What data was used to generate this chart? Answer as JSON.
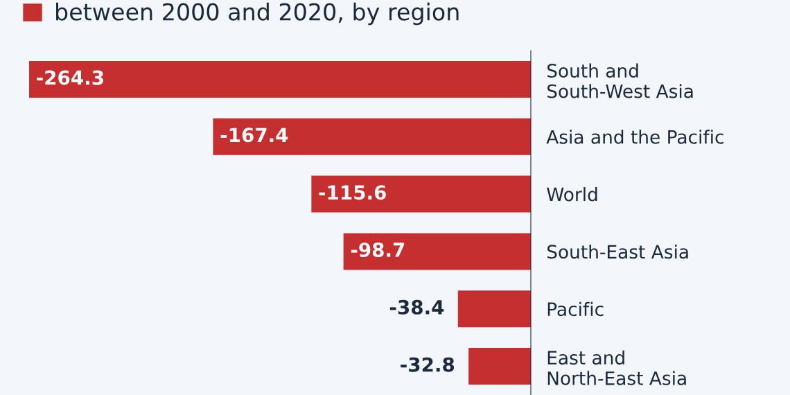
{
  "chart_data": {
    "type": "bar",
    "orientation": "horizontal",
    "title": "between 2000 and 2020, by region",
    "categories": [
      "South and\nSouth-West Asia",
      "Asia and the Pacific",
      "World",
      "South-East Asia",
      "Pacific",
      "East and\nNorth-East Asia"
    ],
    "values": [
      -264.3,
      -167.4,
      -115.6,
      -98.7,
      -38.4,
      -32.8
    ],
    "color": "#c62f2f",
    "data_labels": true
  }
}
